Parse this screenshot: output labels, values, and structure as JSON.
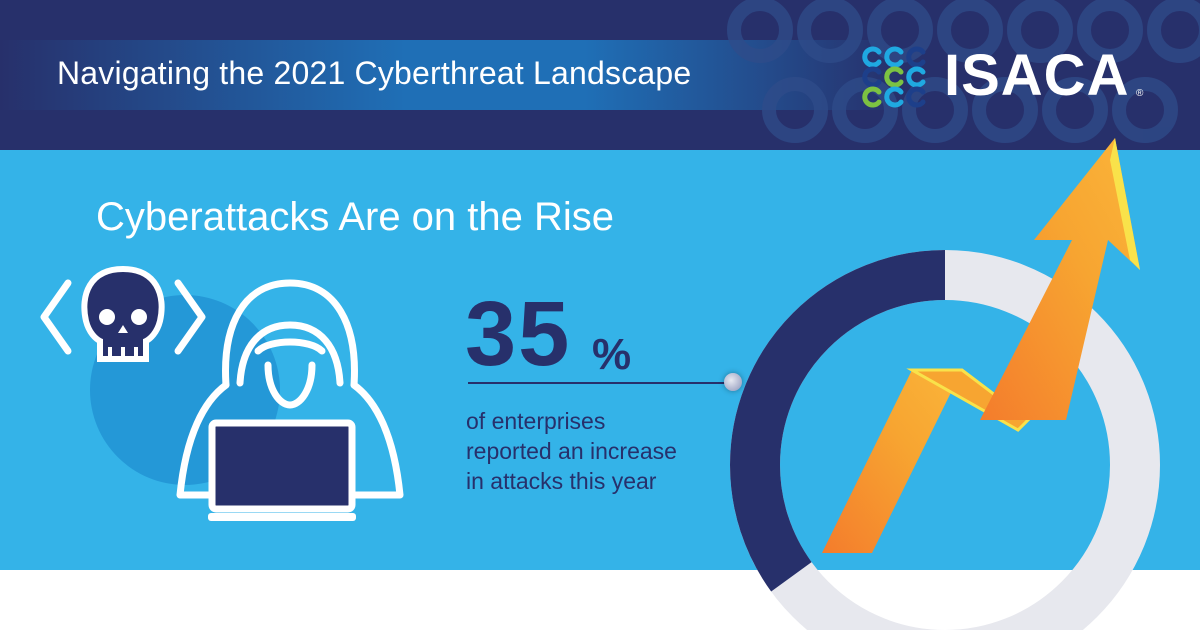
{
  "header": {
    "title": "Navigating the 2021 Cyberthreat Landscape",
    "logo_text": "ISACA",
    "logo_registered": "®"
  },
  "main": {
    "section_title": "Cyberattacks Are on the Rise",
    "stat_value": "35",
    "stat_unit": "%",
    "stat_description_lines": [
      "of enterprises",
      "reported an increase",
      "in attacks this year"
    ],
    "ring_fraction": 0.35
  },
  "icons": [
    "code-brackets-icon",
    "skull-icon",
    "hooded-hacker-icon",
    "laptop-icon",
    "isaca-logo-mark",
    "rising-arrow-icon"
  ],
  "colors": {
    "header_bg": "#27306b",
    "main_bg": "#34b3e8",
    "navy": "#27306b",
    "white": "#ffffff",
    "arrow_orange": "#f7a531",
    "ring_gray": "#e7e8ee",
    "logo_blue": "#1fa9e1",
    "logo_green": "#7cc242",
    "logo_navy": "#1d3f8a"
  }
}
